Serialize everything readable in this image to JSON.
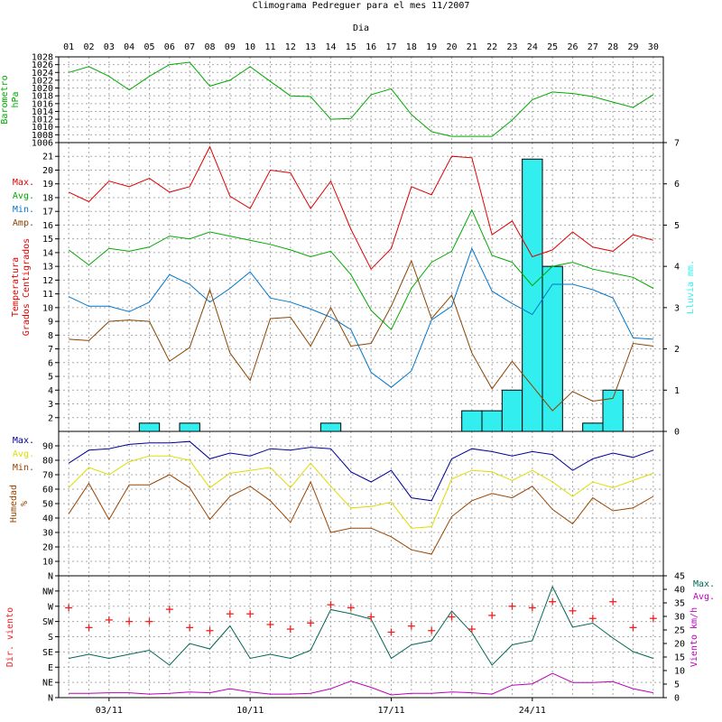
{
  "chart_data": {
    "type": "line",
    "title": "Climograma Pedreguer para el mes 11/2007",
    "top_axis_label": "Dia",
    "days": [
      "01",
      "02",
      "03",
      "04",
      "05",
      "06",
      "07",
      "08",
      "09",
      "10",
      "11",
      "12",
      "13",
      "14",
      "15",
      "16",
      "17",
      "18",
      "19",
      "20",
      "21",
      "22",
      "23",
      "24",
      "25",
      "26",
      "27",
      "28",
      "29",
      "30"
    ],
    "bottom_ticks": [
      {
        "day": 3,
        "label": "03/11"
      },
      {
        "day": 10,
        "label": "10/11"
      },
      {
        "day": 17,
        "label": "17/11"
      },
      {
        "day": 24,
        "label": "24/11"
      }
    ],
    "grid": true,
    "panels": {
      "pressure": {
        "ylabel": [
          "Barometro",
          "hPa"
        ],
        "ylim": [
          1006,
          1028
        ],
        "ticks": [
          1006,
          1008,
          1010,
          1012,
          1014,
          1016,
          1018,
          1020,
          1022,
          1024,
          1026,
          1028
        ],
        "series": [
          {
            "name": "",
            "color": "#00aa00",
            "values": [
              1024,
              1025.5,
              1023,
              1019.5,
              1023,
              1026,
              1026.6,
              1020.5,
              1022,
              1025.5,
              1021.7,
              1018,
              1017.8,
              1012,
              1012.2,
              1018.3,
              1019.8,
              1013.2,
              1008.8,
              1007.6,
              1007.6,
              1007.6,
              1011.8,
              1017,
              1019,
              1018.6,
              1017.8,
              1016.4,
              1015,
              1018.3
            ]
          }
        ]
      },
      "temperature": {
        "ylabel": [
          "Temperatura",
          "Grados Centigrados"
        ],
        "ylim": [
          1,
          22
        ],
        "ticks": [
          2,
          3,
          4,
          5,
          6,
          7,
          8,
          9,
          10,
          11,
          12,
          13,
          14,
          15,
          16,
          17,
          18,
          19,
          20,
          21
        ],
        "legend": [
          {
            "label": "Max.",
            "color": "#dd0000"
          },
          {
            "label": "Avg.",
            "color": "#00aa00"
          },
          {
            "label": "Min.",
            "color": "#0077cc"
          },
          {
            "label": "Amp.",
            "color": "#884400"
          }
        ],
        "series": [
          {
            "name": "Max.",
            "color": "#dd0000",
            "values": [
              18.4,
              17.7,
              19.2,
              18.8,
              19.4,
              18.4,
              18.8,
              21.7,
              18.1,
              17.2,
              20,
              19.8,
              17.2,
              19.2,
              15.7,
              12.8,
              14.3,
              18.8,
              18.2,
              21,
              20.9,
              15.3,
              16.3,
              13.7,
              14.2,
              15.5,
              14.4,
              14.1,
              15.3,
              14.9
            ]
          },
          {
            "name": "Avg.",
            "color": "#00aa00",
            "values": [
              14.2,
              13.1,
              14.3,
              14.1,
              14.4,
              15.2,
              15,
              15.5,
              15.2,
              14.9,
              14.6,
              14.2,
              13.7,
              14.1,
              12.4,
              9.8,
              8.4,
              11.4,
              13.3,
              14.1,
              17.1,
              13.8,
              13.3,
              11.6,
              13,
              13.3,
              12.8,
              12.5,
              12.2,
              11.4
            ]
          },
          {
            "name": "Min.",
            "color": "#0077cc",
            "values": [
              10.8,
              10.1,
              10.1,
              9.7,
              10.4,
              12.4,
              11.7,
              10.4,
              11.4,
              12.6,
              10.7,
              10.4,
              9.9,
              9.3,
              8.4,
              5.3,
              4.2,
              5.4,
              9.1,
              10.1,
              14.3,
              11.2,
              10.3,
              9.5,
              11.7,
              11.7,
              11.3,
              10.7,
              7.8,
              7.7
            ]
          },
          {
            "name": "Amp.",
            "color": "#884400",
            "values": [
              7.7,
              7.6,
              9,
              9.1,
              9,
              6.1,
              7.1,
              11.3,
              6.7,
              4.7,
              9.2,
              9.3,
              7.2,
              10,
              7.2,
              7.4,
              10.1,
              13.4,
              9.2,
              10.9,
              6.7,
              4.1,
              6.1,
              4.3,
              2.5,
              3.9,
              3.2,
              3.4,
              7.4,
              7.2
            ]
          }
        ],
        "rain": {
          "ylabel": "Lluvia mm.",
          "color": "#33eeee",
          "ylim": [
            0,
            7
          ],
          "ticks": [
            0,
            1,
            2,
            3,
            4,
            5,
            6,
            7
          ],
          "values": [
            0,
            0,
            0,
            0,
            0.2,
            0,
            0.2,
            0,
            0,
            0,
            0,
            0,
            0,
            0.2,
            0,
            0,
            0,
            0,
            0,
            0,
            0.5,
            0.5,
            1,
            6.6,
            4,
            0,
            0.2,
            1,
            0,
            0
          ]
        }
      },
      "humidity": {
        "ylabel": [
          "Humedad",
          "%"
        ],
        "ylim": [
          0,
          100
        ],
        "ticks": [
          10,
          20,
          30,
          40,
          50,
          60,
          70,
          80,
          90
        ],
        "legend": [
          {
            "label": "Max.",
            "color": "#000099"
          },
          {
            "label": "Avg.",
            "color": "#dddd00"
          },
          {
            "label": "Min.",
            "color": "#994400"
          }
        ],
        "series": [
          {
            "name": "Max.",
            "color": "#000099",
            "values": [
              78,
              87,
              88,
              91,
              92,
              92,
              93,
              81,
              85,
              83,
              88,
              87,
              89,
              88,
              72,
              65,
              73,
              54,
              52,
              81,
              88,
              86,
              83,
              86,
              84,
              73,
              81,
              85,
              82,
              87
            ]
          },
          {
            "name": "Avg.",
            "color": "#dddd00",
            "values": [
              61,
              75,
              70,
              79,
              83,
              83,
              80,
              61,
              71,
              73,
              75,
              61,
              78,
              62,
              47,
              48,
              51,
              33,
              34,
              67,
              73,
              72,
              66,
              73,
              65,
              55,
              65,
              61,
              66,
              71
            ]
          },
          {
            "name": "Min.",
            "color": "#994400",
            "values": [
              43,
              64,
              39,
              63,
              63,
              70,
              61,
              39,
              55,
              62,
              52,
              37,
              65,
              30,
              33,
              33,
              27,
              18,
              15,
              41,
              52,
              57,
              54,
              62,
              46,
              36,
              54,
              45,
              47,
              55
            ]
          }
        ]
      },
      "wind": {
        "ylabel_left": "Dir. viento",
        "direction_ticks": [
          "N",
          "NE",
          "E",
          "SE",
          "S",
          "SW",
          "W",
          "NW",
          "N"
        ],
        "ylabel_right": "Viento km/h",
        "speed_ylim": [
          0,
          45
        ],
        "speed_ticks": [
          0,
          5,
          10,
          15,
          20,
          25,
          30,
          35,
          40,
          45
        ],
        "legend": [
          {
            "label": "Max.",
            "color": "#006655"
          },
          {
            "label": "Avg.",
            "color": "#bb00bb"
          }
        ],
        "speed_series": [
          {
            "name": "Max.",
            "color": "#006655",
            "values": [
              14.5,
              16,
              14.5,
              16,
              17.5,
              12,
              20,
              18,
              26.5,
              14.5,
              16,
              14.5,
              17.5,
              32.5,
              31,
              29,
              14.5,
              19.5,
              21,
              32,
              24,
              12,
              19.5,
              21,
              41,
              26,
              27.5,
              22,
              17,
              14.5
            ]
          },
          {
            "name": "Avg.",
            "color": "#bb00bb",
            "values": [
              1.6,
              1.6,
              1.8,
              1.8,
              1.3,
              1.6,
              2.1,
              1.8,
              3.3,
              2.1,
              1.3,
              1.3,
              1.6,
              3.3,
              6.1,
              3.8,
              1,
              1.6,
              1.6,
              2.1,
              1.8,
              1.3,
              4.6,
              5.1,
              9,
              5.6,
              5.6,
              5.9,
              3.3,
              1.8
            ]
          }
        ],
        "direction_marker_color": "#ee2222",
        "direction_points": [
          {
            "day": 1,
            "dir": 5.9
          },
          {
            "day": 2,
            "dir": 4.6
          },
          {
            "day": 3,
            "dir": 5.1
          },
          {
            "day": 4,
            "dir": 5
          },
          {
            "day": 5,
            "dir": 5
          },
          {
            "day": 6,
            "dir": 5.8
          },
          {
            "day": 7,
            "dir": 4.6
          },
          {
            "day": 8,
            "dir": 4.4
          },
          {
            "day": 9,
            "dir": 5.5
          },
          {
            "day": 10,
            "dir": 5.5
          },
          {
            "day": 11,
            "dir": 4.8
          },
          {
            "day": 12,
            "dir": 4.5
          },
          {
            "day": 13,
            "dir": 4.9
          },
          {
            "day": 14,
            "dir": 6.1
          },
          {
            "day": 15,
            "dir": 5.9
          },
          {
            "day": 16,
            "dir": 5.3
          },
          {
            "day": 17,
            "dir": 4.3
          },
          {
            "day": 18,
            "dir": 4.7
          },
          {
            "day": 19,
            "dir": 4.4
          },
          {
            "day": 20,
            "dir": 5.3
          },
          {
            "day": 21,
            "dir": 4.5
          },
          {
            "day": 22,
            "dir": 5.4
          },
          {
            "day": 23,
            "dir": 6
          },
          {
            "day": 24,
            "dir": 5.9
          },
          {
            "day": 25,
            "dir": 6.3
          },
          {
            "day": 26,
            "dir": 5.7
          },
          {
            "day": 27,
            "dir": 5.2
          },
          {
            "day": 28,
            "dir": 6.3
          },
          {
            "day": 29,
            "dir": 4.6
          },
          {
            "day": 30,
            "dir": 5.2
          }
        ]
      }
    }
  }
}
